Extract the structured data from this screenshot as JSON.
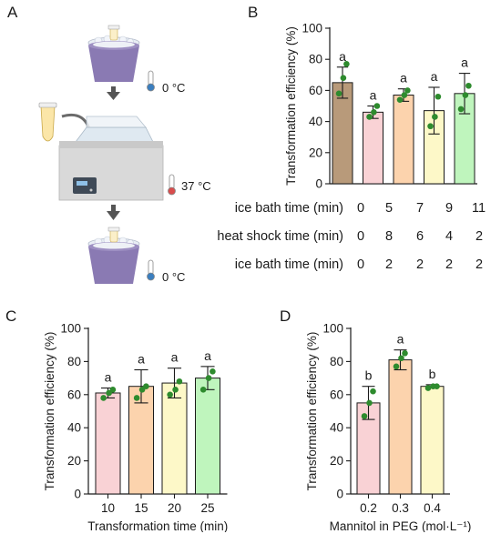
{
  "panels": {
    "a": "A",
    "b": "B",
    "c": "C",
    "d": "D"
  },
  "illustration": {
    "temp_1": "0 °C",
    "temp_2": "37 °C",
    "temp_3": "0 °C",
    "icons": [
      "ice-bucket-icon",
      "thermometer-icon",
      "arrow-down-icon",
      "microtube-icon",
      "water-bath-icon"
    ],
    "colors": {
      "bucket": "#8a7ab3",
      "bath_body": "#d9d9d9",
      "thermo_cold": "#3a7ebf",
      "thermo_hot": "#d94c4c",
      "arrow": "#555555"
    }
  },
  "conditions": {
    "rows": [
      {
        "label": "ice bath time (min)",
        "values": [
          "0",
          "5",
          "7",
          "9",
          "11"
        ]
      },
      {
        "label": "heat shock time (min)",
        "values": [
          "0",
          "8",
          "6",
          "4",
          "2"
        ]
      },
      {
        "label": "ice bath time (min)",
        "values": [
          "0",
          "2",
          "2",
          "2",
          "2"
        ]
      }
    ]
  },
  "chart_data": [
    {
      "id": "B",
      "type": "bar",
      "ylabel": "Transformation efficiency (%)",
      "xlabel": "",
      "ylim": [
        0,
        100
      ],
      "yticks": [
        0,
        20,
        40,
        60,
        80,
        100
      ],
      "categories": [
        "",
        "",
        "",
        "",
        ""
      ],
      "values": [
        65,
        46,
        57,
        47,
        58
      ],
      "errors": [
        10,
        4,
        4,
        15,
        13
      ],
      "letters": [
        "a",
        "a",
        "a",
        "a",
        "a"
      ],
      "points": [
        [
          58,
          68,
          77
        ],
        [
          43,
          46,
          50
        ],
        [
          54,
          57,
          60
        ],
        [
          37,
          43,
          56
        ],
        [
          48,
          57,
          63
        ]
      ],
      "fills": [
        "#b89a7a",
        "#f9d2d5",
        "#fcd3ad",
        "#fdf8c8",
        "#bff5bd"
      ],
      "grid": false
    },
    {
      "id": "C",
      "type": "bar",
      "ylabel": "Transformation efficiency (%)",
      "xlabel": "Transformation time (min)",
      "ylim": [
        0,
        100
      ],
      "yticks": [
        0,
        20,
        40,
        60,
        80,
        100
      ],
      "categories": [
        "10",
        "15",
        "20",
        "25"
      ],
      "values": [
        61,
        65,
        67,
        70
      ],
      "errors": [
        3,
        10,
        9,
        7
      ],
      "letters": [
        "a",
        "a",
        "a",
        "a"
      ],
      "points": [
        [
          58,
          61,
          63
        ],
        [
          58,
          63,
          65
        ],
        [
          60,
          63,
          68
        ],
        [
          63,
          70,
          74
        ]
      ],
      "fills": [
        "#f9d2d5",
        "#fcd3ad",
        "#fdf8c8",
        "#bff5bd"
      ],
      "grid": false
    },
    {
      "id": "D",
      "type": "bar",
      "ylabel": "Transformation efficiency (%)",
      "xlabel": "Mannitol in PEG (mol·L⁻¹)",
      "ylim": [
        0,
        100
      ],
      "yticks": [
        0,
        20,
        40,
        60,
        80,
        100
      ],
      "categories": [
        "0.2",
        "0.3",
        "0.4"
      ],
      "values": [
        55,
        81,
        65
      ],
      "errors": [
        10,
        6,
        1
      ],
      "letters": [
        "b",
        "a",
        "b"
      ],
      "points": [
        [
          47,
          55,
          62
        ],
        [
          77,
          82,
          85
        ],
        [
          64,
          65,
          65
        ]
      ],
      "fills": [
        "#f9d2d5",
        "#fcd3ad",
        "#fdf8c8"
      ],
      "grid": false
    }
  ],
  "point_color": "#2e8b2e",
  "axis_color": "#1a1a1a"
}
